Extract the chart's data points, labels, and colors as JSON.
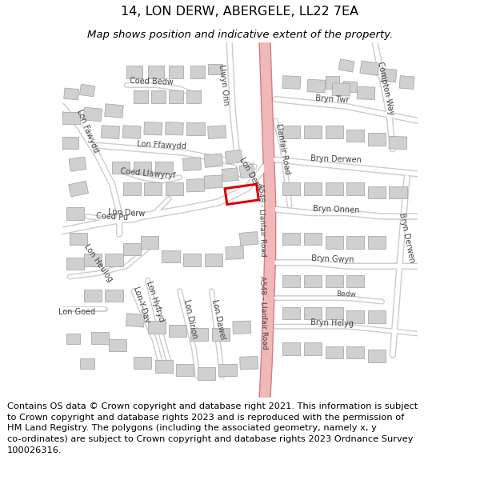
{
  "title": "14, LON DERW, ABERGELE, LL22 7EA",
  "subtitle": "Map shows position and indicative extent of the property.",
  "footer_lines": [
    "Contains OS data © Crown copyright and database right 2021. This information is subject",
    "to Crown copyright and database rights 2023 and is reproduced with the permission of",
    "HM Land Registry. The polygons (including the associated geometry, namely x, y",
    "co-ordinates) are subject to Crown copyright and database rights 2023 Ordnance Survey",
    "100026316."
  ],
  "bg_color": "#ffffff",
  "map_bg": "#eeeeee",
  "road_color": "#ffffff",
  "road_border": "#cccccc",
  "major_road_color": "#f0b8b8",
  "major_road_border": "#d08080",
  "building_color": "#d0d0d0",
  "building_border": "#aaaaaa",
  "highlight_color": "#dd0000",
  "title_fontsize": 11.5,
  "subtitle_fontsize": 9.5,
  "footer_fontsize": 8.2,
  "label_color": "#444444",
  "label_fontsize": 7.0
}
